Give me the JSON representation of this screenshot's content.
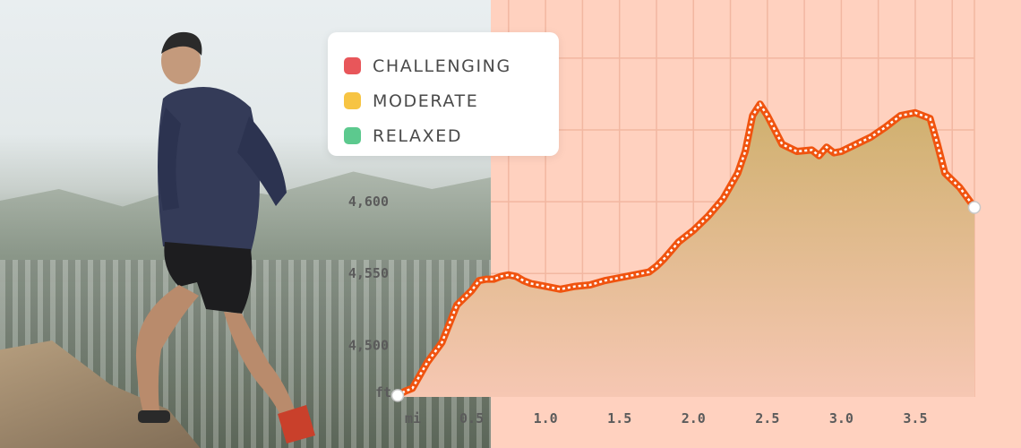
{
  "colors": {
    "chart_bg": "#ffd1bf",
    "grid": "#f2b7a1",
    "line": "#f0530f",
    "area_top": "#cfb06e",
    "area_bottom": "#f6c7b3"
  },
  "legend": {
    "items": [
      {
        "label": "CHALLENGING",
        "color": "#e8565a"
      },
      {
        "label": "MODERATE",
        "color": "#f7c443"
      },
      {
        "label": "RELAXED",
        "color": "#5cc98e"
      }
    ]
  },
  "chart_data": {
    "type": "area",
    "title": "",
    "xlabel": "mi",
    "ylabel": "ft",
    "xlim": [
      0.0,
      3.9
    ],
    "ylim": [
      4464,
      4738
    ],
    "x_ticks": [
      0.5,
      1.0,
      1.5,
      2.0,
      2.5,
      3.0,
      3.5
    ],
    "x_tick_labels": [
      "0.5",
      "1.0",
      "1.5",
      "2.0",
      "2.5",
      "3.0",
      "3.5"
    ],
    "y_ticks": [
      4500,
      4550,
      4600
    ],
    "y_tick_labels": [
      "4,500",
      "4,550",
      "4,600"
    ],
    "grid": true,
    "legend_position": "top-left",
    "series": [
      {
        "x": [
          0.0,
          0.05,
          0.1,
          0.2,
          0.3,
          0.35,
          0.4,
          0.5,
          0.55,
          0.6,
          0.65,
          0.7,
          0.75,
          0.8,
          0.85,
          0.9,
          1.0,
          1.1,
          1.2,
          1.3,
          1.4,
          1.5,
          1.6,
          1.7,
          1.75,
          1.8,
          1.85,
          1.9,
          2.0,
          2.1,
          2.2,
          2.3,
          2.35,
          2.4,
          2.45,
          2.5,
          2.55,
          2.6,
          2.7,
          2.8,
          2.85,
          2.9,
          2.95,
          3.0,
          3.1,
          3.2,
          3.3,
          3.4,
          3.5,
          3.6,
          3.65,
          3.7,
          3.8,
          3.9
        ],
        "y": [
          4465,
          4468,
          4470,
          4488,
          4502,
          4515,
          4528,
          4538,
          4545,
          4546,
          4546,
          4548,
          4549,
          4548,
          4545,
          4543,
          4541,
          4539,
          4541,
          4542,
          4545,
          4547,
          4549,
          4551,
          4555,
          4560,
          4566,
          4572,
          4580,
          4590,
          4602,
          4620,
          4635,
          4660,
          4668,
          4660,
          4650,
          4640,
          4635,
          4636,
          4632,
          4638,
          4634,
          4635,
          4640,
          4645,
          4652,
          4660,
          4662,
          4658,
          4640,
          4620,
          4610,
          4596
        ]
      }
    ]
  }
}
